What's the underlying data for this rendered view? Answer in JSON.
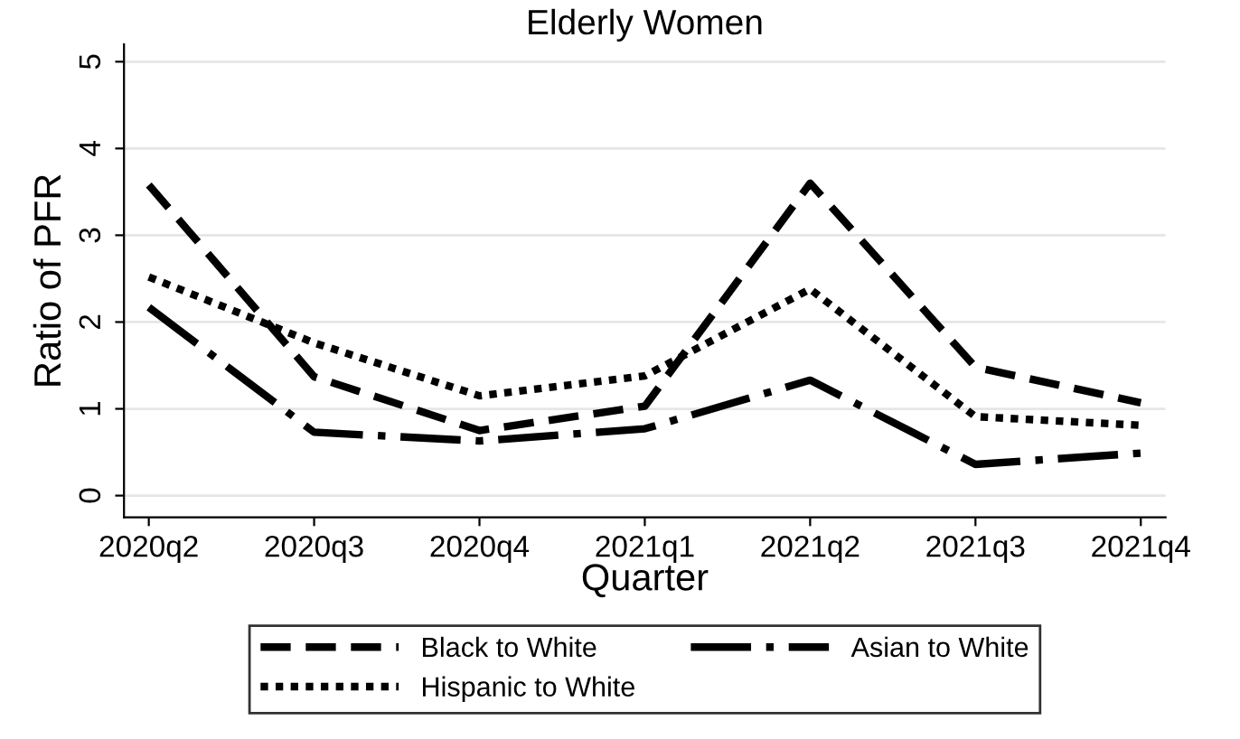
{
  "chart_data": {
    "type": "line",
    "title": "Elderly Women",
    "xlabel": "Quarter",
    "ylabel": "Ratio of PFR",
    "categories": [
      "2020q2",
      "2020q3",
      "2020q4",
      "2021q1",
      "2021q2",
      "2021q3",
      "2021q4"
    ],
    "series": [
      {
        "name": "Black to White",
        "color": "#000000",
        "line_style": "dashed",
        "values": [
          3.58,
          1.37,
          0.75,
          1.03,
          3.6,
          1.48,
          1.07
        ]
      },
      {
        "name": "Hispanic to White",
        "color": "#000000",
        "line_style": "dotted",
        "values": [
          2.52,
          1.76,
          1.15,
          1.38,
          2.38,
          0.91,
          0.81
        ]
      },
      {
        "name": "Asian to White",
        "color": "#000000",
        "line_style": "dashdot",
        "values": [
          2.17,
          0.73,
          0.63,
          0.77,
          1.33,
          0.36,
          0.49
        ]
      }
    ],
    "ylim": [
      -0.25,
      5.2
    ],
    "yticks": [
      0,
      1,
      2,
      3,
      4,
      5
    ],
    "grid": "y",
    "legend": "bottom"
  }
}
